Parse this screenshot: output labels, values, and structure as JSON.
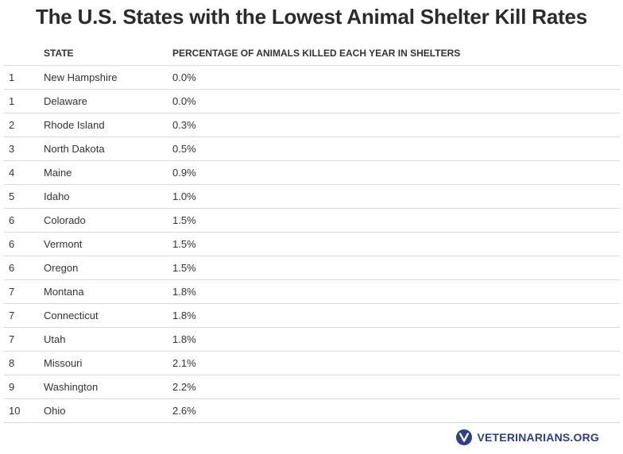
{
  "title": "The U.S. States with the Lowest Animal Shelter Kill Rates",
  "table": {
    "headers": [
      "",
      "STATE",
      "PERCENTAGE OF ANIMALS KILLED EACH YEAR IN SHELTERS"
    ]
  },
  "chart_data": {
    "type": "table",
    "title": "The U.S. States with the Lowest Animal Shelter Kill Rates",
    "columns": [
      "",
      "STATE",
      "PERCENTAGE OF ANIMALS KILLED EACH YEAR IN SHELTERS"
    ],
    "rows": [
      [
        "1",
        "New Hampshire",
        "0.0%"
      ],
      [
        "1",
        "Delaware",
        "0.0%"
      ],
      [
        "2",
        "Rhode Island",
        "0.3%"
      ],
      [
        "3",
        "North Dakota",
        "0.5%"
      ],
      [
        "4",
        "Maine",
        "0.9%"
      ],
      [
        "5",
        "Idaho",
        "1.0%"
      ],
      [
        "6",
        "Colorado",
        "1.5%"
      ],
      [
        "6",
        "Vermont",
        "1.5%"
      ],
      [
        "6",
        "Oregon",
        "1.5%"
      ],
      [
        "7",
        "Montana",
        "1.8%"
      ],
      [
        "7",
        "Connecticut",
        "1.8%"
      ],
      [
        "7",
        "Utah",
        "1.8%"
      ],
      [
        "8",
        "Missouri",
        "2.1%"
      ],
      [
        "9",
        "Washington",
        "2.2%"
      ],
      [
        "10",
        "Ohio",
        "2.6%"
      ]
    ]
  },
  "footer": {
    "brand": "VETERINARIANS.ORG",
    "brand_color": "#2c3e8c"
  }
}
